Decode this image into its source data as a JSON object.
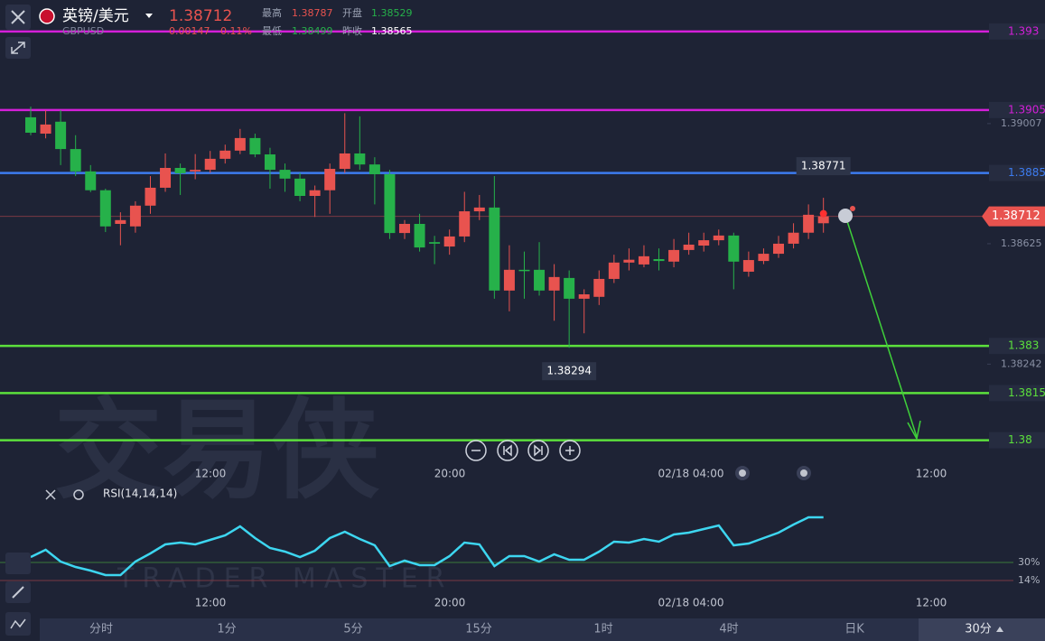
{
  "header": {
    "name": "英镑/美元",
    "price": 1.38712,
    "symbol": "GBPUSD",
    "change": "0.00147",
    "change_pct": "0.11%",
    "high_label": "最高",
    "high": 1.38787,
    "open_label": "开盘",
    "open": 1.38529,
    "low_label": "最低",
    "low": 1.38499,
    "prev_label": "昨收",
    "prev": 1.38565
  },
  "watermark": {
    "title": "交易侠",
    "subtitle": "TRADER MASTER"
  },
  "chart_data": {
    "type": "candlestick",
    "open": [
      1.39027,
      1.38975,
      1.39013,
      1.38926,
      1.38855,
      1.38795,
      1.38688,
      1.3868,
      1.38746,
      1.38803,
      1.38866,
      1.38855,
      1.3886,
      1.38895,
      1.38921,
      1.38961,
      1.38909,
      1.3886,
      1.38832,
      1.38777,
      1.38795,
      1.38863,
      1.38912,
      1.38877,
      1.38846,
      1.38659,
      1.38688,
      1.3863,
      1.38616,
      1.38648,
      1.38728,
      1.3874,
      1.38476,
      1.38542,
      1.38542,
      1.38476,
      1.38516,
      1.3845,
      1.38456,
      1.38513,
      1.38565,
      1.38559,
      1.38576,
      1.38568,
      1.38605,
      1.38619,
      1.38636,
      1.38651,
      1.38536,
      1.3857,
      1.38593,
      1.38625,
      1.3866,
      1.3869
    ],
    "high": [
      1.39061,
      1.3905,
      1.3905,
      1.3897,
      1.38875,
      1.388,
      1.38725,
      1.3876,
      1.3884,
      1.38912,
      1.3888,
      1.3891,
      1.3892,
      1.3894,
      1.3899,
      1.38975,
      1.3893,
      1.3888,
      1.3885,
      1.3881,
      1.3888,
      1.3904,
      1.3903,
      1.389,
      1.3886,
      1.387,
      1.3872,
      1.3865,
      1.3867,
      1.3879,
      1.3878,
      1.3884,
      1.3862,
      1.386,
      1.3863,
      1.3856,
      1.3854,
      1.3848,
      1.3854,
      1.3859,
      1.3861,
      1.3862,
      1.3861,
      1.3864,
      1.3866,
      1.3866,
      1.3867,
      1.3866,
      1.386,
      1.3861,
      1.3865,
      1.3869,
      1.3875,
      1.38771
    ],
    "low": [
      1.3897,
      1.3896,
      1.38875,
      1.3884,
      1.38789,
      1.38662,
      1.3862,
      1.3866,
      1.3872,
      1.3879,
      1.3878,
      1.3883,
      1.3885,
      1.3888,
      1.3891,
      1.389,
      1.388,
      1.3879,
      1.3876,
      1.3871,
      1.3872,
      1.3885,
      1.3886,
      1.3875,
      1.3864,
      1.3864,
      1.386,
      1.3856,
      1.3859,
      1.3863,
      1.387,
      1.3845,
      1.3841,
      1.3845,
      1.3846,
      1.3838,
      1.38294,
      1.3834,
      1.3843,
      1.385,
      1.3854,
      1.3855,
      1.3854,
      1.3855,
      1.3859,
      1.386,
      1.3862,
      1.3848,
      1.3852,
      1.3856,
      1.3858,
      1.3861,
      1.3864,
      1.3866
    ],
    "close": [
      1.38978,
      1.39004,
      1.38926,
      1.38855,
      1.38795,
      1.3868,
      1.387,
      1.38746,
      1.38803,
      1.38866,
      1.38849,
      1.3886,
      1.38895,
      1.38921,
      1.38961,
      1.38909,
      1.3886,
      1.38832,
      1.38777,
      1.38795,
      1.38863,
      1.38912,
      1.38877,
      1.38846,
      1.38659,
      1.38688,
      1.38613,
      1.38625,
      1.38648,
      1.38728,
      1.3874,
      1.38476,
      1.38542,
      1.38539,
      1.38476,
      1.38519,
      1.3845,
      1.38464,
      1.38513,
      1.38565,
      1.38574,
      1.38585,
      1.3857,
      1.38605,
      1.38622,
      1.38636,
      1.38651,
      1.38568,
      1.38573,
      1.38593,
      1.38625,
      1.3866,
      1.38717,
      1.38712
    ],
    "up_color": "#e8534f",
    "down_color": "#26b14a",
    "ylim": [
      1.3793,
      1.394
    ],
    "yticks": [
      1.39007,
      1.38625,
      1.38242
    ],
    "time_labels": [
      "12:00",
      "20:00",
      "02/18 04:00",
      "12:00"
    ],
    "levels": [
      {
        "value": 1.393,
        "color": "#d41fd9"
      },
      {
        "value": 1.3905,
        "color": "#d41fd9"
      },
      {
        "value": 1.3885,
        "color": "#3d7cf0"
      },
      {
        "value": 1.383,
        "color": "#5ce03c"
      },
      {
        "value": 1.3815,
        "color": "#5ce03c"
      },
      {
        "value": 1.38,
        "color": "#5ce03c"
      }
    ],
    "rsi": {
      "name": "RSI(14,14,14)",
      "color": "#3dd6f0",
      "ylim": [
        0,
        100
      ],
      "values": [
        34.8,
        41.2,
        30.8,
        26,
        22.8,
        18.8,
        18.8,
        30.8,
        38,
        46,
        47.6,
        46,
        50,
        54,
        62,
        51.6,
        42.8,
        39.6,
        34.8,
        40.4,
        51.6,
        57.2,
        50.8,
        45.2,
        26.8,
        31.6,
        27.6,
        27.6,
        35.6,
        47.6,
        46,
        26.8,
        35.6,
        35.6,
        30.8,
        37.2,
        32.4,
        32.4,
        39.6,
        48.4,
        47.6,
        50.8,
        48.4,
        54.8,
        56.4,
        59.6,
        62.8,
        45.2,
        46.8,
        51.6,
        56.4,
        63.6,
        70,
        70
      ],
      "levels": [
        {
          "value": 30,
          "label": "30%"
        },
        {
          "value": 14,
          "label": "14%"
        }
      ]
    }
  },
  "toolbar": [
    "分时",
    "1分",
    "5分",
    "15分",
    "1时",
    "4时",
    "日K",
    "30分"
  ]
}
